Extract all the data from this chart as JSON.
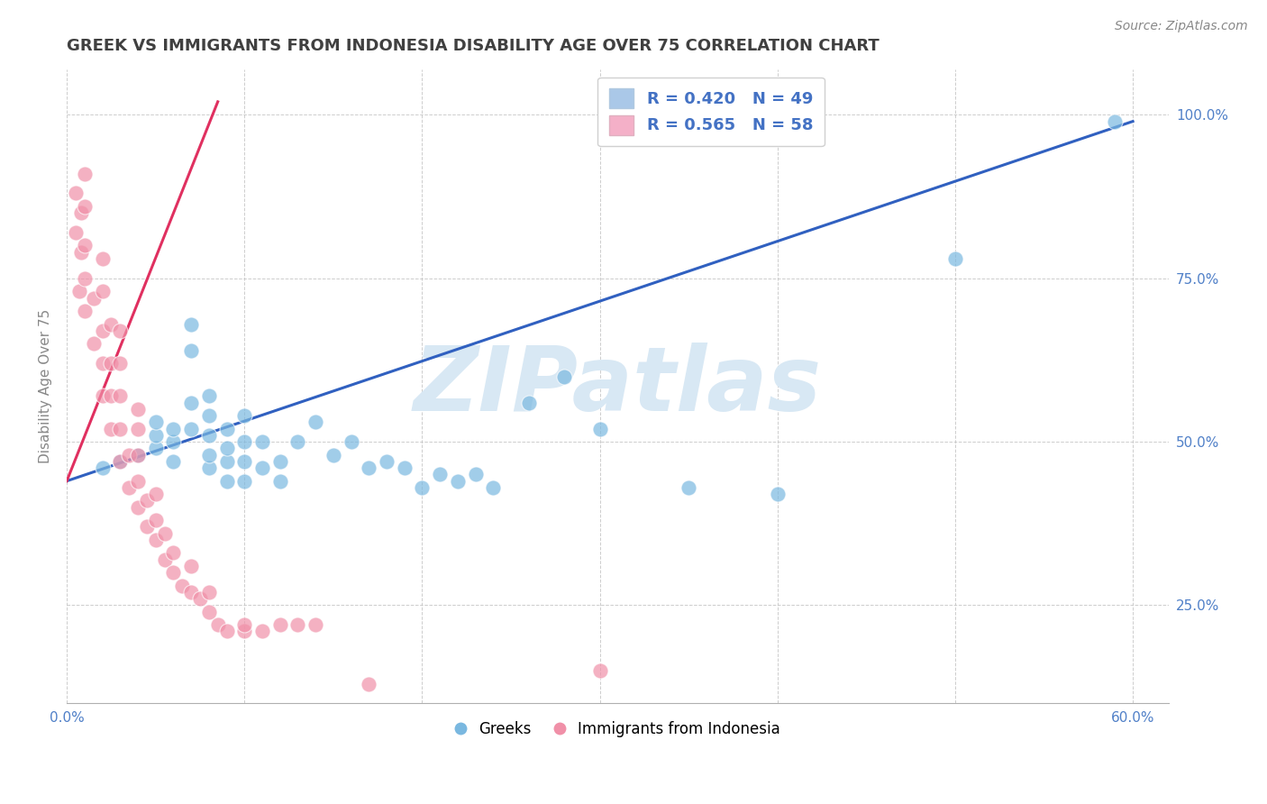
{
  "title": "GREEK VS IMMIGRANTS FROM INDONESIA DISABILITY AGE OVER 75 CORRELATION CHART",
  "source": "Source: ZipAtlas.com",
  "ylabel": "Disability Age Over 75",
  "xlim": [
    0.0,
    0.62
  ],
  "ylim": [
    0.1,
    1.07
  ],
  "xticks": [
    0.0,
    0.1,
    0.2,
    0.3,
    0.4,
    0.5,
    0.6
  ],
  "xticklabels": [
    "0.0%",
    "",
    "",
    "",
    "",
    "",
    "60.0%"
  ],
  "yticks_right": [
    0.25,
    0.5,
    0.75,
    1.0
  ],
  "yticklabels_right": [
    "25.0%",
    "50.0%",
    "75.0%",
    "100.0%"
  ],
  "legend_blue_label": "R = 0.420   N = 49",
  "legend_pink_label": "R = 0.565   N = 58",
  "legend_blue_color": "#aac8e8",
  "legend_pink_color": "#f4b0c8",
  "blue_color": "#7ab8e0",
  "pink_color": "#f090a8",
  "trend_blue_color": "#3060c0",
  "trend_pink_color": "#e03060",
  "watermark_text": "ZIPatlas",
  "watermark_color": "#d8e8f4",
  "background_color": "#ffffff",
  "grid_color": "#c8c8c8",
  "title_color": "#404040",
  "title_fontsize": 13,
  "axis_label_color": "#5080c8",
  "blue_scatter_x": [
    0.02,
    0.03,
    0.04,
    0.05,
    0.05,
    0.05,
    0.06,
    0.06,
    0.06,
    0.07,
    0.07,
    0.07,
    0.07,
    0.08,
    0.08,
    0.08,
    0.08,
    0.08,
    0.09,
    0.09,
    0.09,
    0.09,
    0.1,
    0.1,
    0.1,
    0.1,
    0.11,
    0.11,
    0.12,
    0.12,
    0.13,
    0.14,
    0.15,
    0.16,
    0.17,
    0.18,
    0.19,
    0.2,
    0.21,
    0.22,
    0.23,
    0.24,
    0.26,
    0.28,
    0.3,
    0.35,
    0.4,
    0.5,
    0.59
  ],
  "blue_scatter_y": [
    0.46,
    0.47,
    0.48,
    0.49,
    0.51,
    0.53,
    0.47,
    0.5,
    0.52,
    0.52,
    0.56,
    0.64,
    0.68,
    0.46,
    0.48,
    0.51,
    0.54,
    0.57,
    0.44,
    0.47,
    0.49,
    0.52,
    0.44,
    0.47,
    0.5,
    0.54,
    0.46,
    0.5,
    0.44,
    0.47,
    0.5,
    0.53,
    0.48,
    0.5,
    0.46,
    0.47,
    0.46,
    0.43,
    0.45,
    0.44,
    0.45,
    0.43,
    0.56,
    0.6,
    0.52,
    0.43,
    0.42,
    0.78,
    0.99
  ],
  "pink_scatter_x": [
    0.005,
    0.005,
    0.007,
    0.008,
    0.008,
    0.01,
    0.01,
    0.01,
    0.01,
    0.01,
    0.015,
    0.015,
    0.02,
    0.02,
    0.02,
    0.02,
    0.02,
    0.025,
    0.025,
    0.025,
    0.025,
    0.03,
    0.03,
    0.03,
    0.03,
    0.03,
    0.035,
    0.035,
    0.04,
    0.04,
    0.04,
    0.04,
    0.04,
    0.045,
    0.045,
    0.05,
    0.05,
    0.05,
    0.055,
    0.055,
    0.06,
    0.06,
    0.065,
    0.07,
    0.07,
    0.075,
    0.08,
    0.08,
    0.085,
    0.09,
    0.1,
    0.1,
    0.11,
    0.12,
    0.13,
    0.14,
    0.17,
    0.3
  ],
  "pink_scatter_y": [
    0.82,
    0.88,
    0.73,
    0.79,
    0.85,
    0.7,
    0.75,
    0.8,
    0.86,
    0.91,
    0.65,
    0.72,
    0.57,
    0.62,
    0.67,
    0.73,
    0.78,
    0.52,
    0.57,
    0.62,
    0.68,
    0.47,
    0.52,
    0.57,
    0.62,
    0.67,
    0.43,
    0.48,
    0.4,
    0.44,
    0.48,
    0.52,
    0.55,
    0.37,
    0.41,
    0.35,
    0.38,
    0.42,
    0.32,
    0.36,
    0.3,
    0.33,
    0.28,
    0.27,
    0.31,
    0.26,
    0.24,
    0.27,
    0.22,
    0.21,
    0.21,
    0.22,
    0.21,
    0.22,
    0.22,
    0.22,
    0.13,
    0.15
  ],
  "blue_trend_x": [
    0.0,
    0.6
  ],
  "blue_trend_y": [
    0.44,
    0.99
  ],
  "pink_trend_x": [
    0.0,
    0.085
  ],
  "pink_trend_y": [
    0.44,
    1.02
  ]
}
